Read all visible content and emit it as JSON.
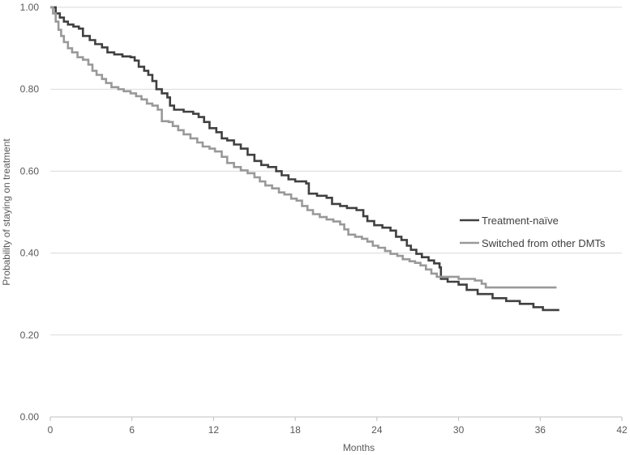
{
  "chart_data": {
    "type": "line",
    "subtype": "step",
    "title": "",
    "xlabel": "Months",
    "ylabel": "Probability of staying on treatment",
    "xlim": [
      0,
      42
    ],
    "ylim": [
      0,
      1
    ],
    "x_ticks": [
      0,
      6,
      12,
      18,
      24,
      30,
      36,
      42
    ],
    "x_tick_labels": [
      "0",
      "6",
      "12",
      "18",
      "24",
      "30",
      "36",
      "42"
    ],
    "y_ticks": [
      0,
      0.2,
      0.4,
      0.6,
      0.8,
      1.0
    ],
    "y_tick_labels": [
      "0.00",
      "0.20",
      "0.40",
      "0.60",
      "0.80",
      "1.00"
    ],
    "grid": "horizontal",
    "legend_position": "right",
    "series": [
      {
        "name": "Treatment-naïve",
        "color": "#404040",
        "points": [
          [
            0,
            1.0
          ],
          [
            0.4,
            0.985
          ],
          [
            0.7,
            0.975
          ],
          [
            1.0,
            0.965
          ],
          [
            1.3,
            0.958
          ],
          [
            1.7,
            0.953
          ],
          [
            2.1,
            0.948
          ],
          [
            2.4,
            0.93
          ],
          [
            2.9,
            0.92
          ],
          [
            3.3,
            0.91
          ],
          [
            3.8,
            0.902
          ],
          [
            4.2,
            0.89
          ],
          [
            4.7,
            0.885
          ],
          [
            5.3,
            0.88
          ],
          [
            5.9,
            0.878
          ],
          [
            6.2,
            0.87
          ],
          [
            6.5,
            0.855
          ],
          [
            6.9,
            0.845
          ],
          [
            7.2,
            0.835
          ],
          [
            7.5,
            0.82
          ],
          [
            7.8,
            0.8
          ],
          [
            8.2,
            0.79
          ],
          [
            8.6,
            0.78
          ],
          [
            8.8,
            0.76
          ],
          [
            9.1,
            0.75
          ],
          [
            9.8,
            0.745
          ],
          [
            10.5,
            0.74
          ],
          [
            10.9,
            0.732
          ],
          [
            11.3,
            0.72
          ],
          [
            11.7,
            0.705
          ],
          [
            12.2,
            0.695
          ],
          [
            12.6,
            0.68
          ],
          [
            13.0,
            0.675
          ],
          [
            13.5,
            0.665
          ],
          [
            14.0,
            0.655
          ],
          [
            14.5,
            0.64
          ],
          [
            15.0,
            0.625
          ],
          [
            15.5,
            0.615
          ],
          [
            16.0,
            0.61
          ],
          [
            16.6,
            0.6
          ],
          [
            17.0,
            0.59
          ],
          [
            17.5,
            0.58
          ],
          [
            18.0,
            0.575
          ],
          [
            18.8,
            0.57
          ],
          [
            19.0,
            0.545
          ],
          [
            19.6,
            0.54
          ],
          [
            20.3,
            0.535
          ],
          [
            20.7,
            0.52
          ],
          [
            21.3,
            0.515
          ],
          [
            21.8,
            0.51
          ],
          [
            22.5,
            0.505
          ],
          [
            23.0,
            0.49
          ],
          [
            23.3,
            0.478
          ],
          [
            23.8,
            0.468
          ],
          [
            24.4,
            0.462
          ],
          [
            25.0,
            0.455
          ],
          [
            25.4,
            0.44
          ],
          [
            25.8,
            0.432
          ],
          [
            26.2,
            0.418
          ],
          [
            26.5,
            0.408
          ],
          [
            26.9,
            0.398
          ],
          [
            27.3,
            0.39
          ],
          [
            27.8,
            0.382
          ],
          [
            28.2,
            0.375
          ],
          [
            28.6,
            0.365
          ],
          [
            28.7,
            0.337
          ],
          [
            29.2,
            0.33
          ],
          [
            30.0,
            0.323
          ],
          [
            30.6,
            0.31
          ],
          [
            31.4,
            0.3
          ],
          [
            32.5,
            0.29
          ],
          [
            33.5,
            0.283
          ],
          [
            34.5,
            0.276
          ],
          [
            35.5,
            0.268
          ],
          [
            36.2,
            0.261
          ],
          [
            37.4,
            0.261
          ]
        ]
      },
      {
        "name": "Switched from other DMTs",
        "color": "#999999",
        "points": [
          [
            0,
            1.0
          ],
          [
            0.2,
            0.985
          ],
          [
            0.4,
            0.965
          ],
          [
            0.6,
            0.945
          ],
          [
            0.8,
            0.93
          ],
          [
            1.0,
            0.915
          ],
          [
            1.3,
            0.9
          ],
          [
            1.6,
            0.89
          ],
          [
            2.0,
            0.878
          ],
          [
            2.4,
            0.872
          ],
          [
            2.8,
            0.86
          ],
          [
            3.1,
            0.845
          ],
          [
            3.4,
            0.835
          ],
          [
            3.8,
            0.825
          ],
          [
            4.1,
            0.815
          ],
          [
            4.5,
            0.805
          ],
          [
            5.0,
            0.8
          ],
          [
            5.4,
            0.795
          ],
          [
            5.9,
            0.79
          ],
          [
            6.3,
            0.783
          ],
          [
            6.7,
            0.775
          ],
          [
            7.1,
            0.765
          ],
          [
            7.5,
            0.76
          ],
          [
            7.9,
            0.75
          ],
          [
            8.2,
            0.722
          ],
          [
            8.7,
            0.72
          ],
          [
            9.0,
            0.71
          ],
          [
            9.4,
            0.7
          ],
          [
            9.8,
            0.69
          ],
          [
            10.3,
            0.68
          ],
          [
            10.8,
            0.67
          ],
          [
            11.2,
            0.66
          ],
          [
            11.7,
            0.655
          ],
          [
            12.1,
            0.648
          ],
          [
            12.6,
            0.635
          ],
          [
            13.0,
            0.62
          ],
          [
            13.5,
            0.61
          ],
          [
            14.0,
            0.602
          ],
          [
            14.5,
            0.595
          ],
          [
            15.0,
            0.585
          ],
          [
            15.4,
            0.575
          ],
          [
            15.8,
            0.565
          ],
          [
            16.3,
            0.558
          ],
          [
            16.8,
            0.548
          ],
          [
            17.2,
            0.543
          ],
          [
            17.7,
            0.533
          ],
          [
            18.1,
            0.528
          ],
          [
            18.5,
            0.515
          ],
          [
            18.9,
            0.505
          ],
          [
            19.3,
            0.495
          ],
          [
            19.8,
            0.488
          ],
          [
            20.3,
            0.482
          ],
          [
            20.8,
            0.477
          ],
          [
            21.3,
            0.47
          ],
          [
            21.6,
            0.458
          ],
          [
            21.9,
            0.445
          ],
          [
            22.4,
            0.44
          ],
          [
            22.9,
            0.435
          ],
          [
            23.3,
            0.428
          ],
          [
            23.7,
            0.418
          ],
          [
            24.1,
            0.413
          ],
          [
            24.6,
            0.405
          ],
          [
            25.0,
            0.398
          ],
          [
            25.5,
            0.393
          ],
          [
            25.9,
            0.385
          ],
          [
            26.4,
            0.38
          ],
          [
            26.8,
            0.376
          ],
          [
            27.2,
            0.37
          ],
          [
            27.6,
            0.36
          ],
          [
            28.0,
            0.35
          ],
          [
            28.4,
            0.342
          ],
          [
            30.0,
            0.337
          ],
          [
            31.2,
            0.333
          ],
          [
            31.7,
            0.325
          ],
          [
            32.0,
            0.316
          ],
          [
            37.2,
            0.316
          ]
        ]
      }
    ]
  }
}
